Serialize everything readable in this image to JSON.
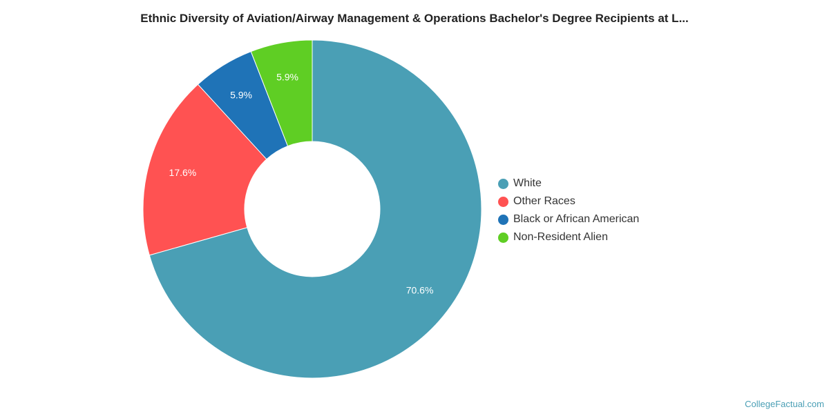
{
  "chart_data": {
    "type": "pie",
    "title": "Ethnic Diversity of Aviation/Airway Management & Operations Bachelor's Degree Recipients at L...",
    "donut": true,
    "legend_position": "right",
    "series": [
      {
        "name": "White",
        "value": 70.6,
        "label": "70.6%",
        "color": "#4a9fb5"
      },
      {
        "name": "Other Races",
        "value": 17.6,
        "label": "17.6%",
        "color": "#ff5252"
      },
      {
        "name": "Black or African American",
        "value": 5.9,
        "label": "5.9%",
        "color": "#1f73b7"
      },
      {
        "name": "Non-Resident Alien",
        "value": 5.9,
        "label": "5.9%",
        "color": "#5fce24"
      }
    ]
  },
  "footer": {
    "source": "CollegeFactual.com"
  }
}
